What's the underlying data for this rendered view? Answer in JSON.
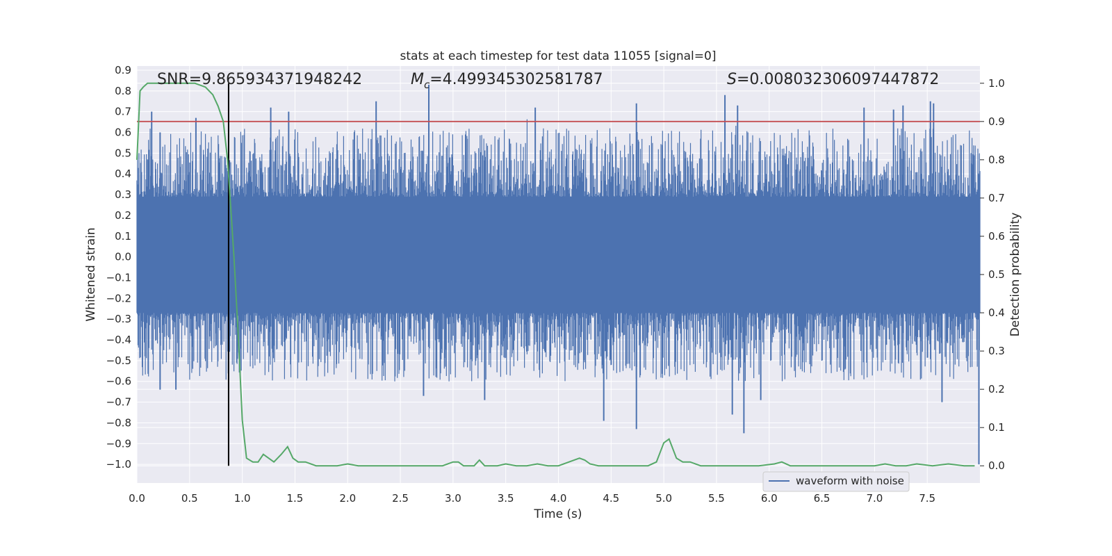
{
  "chart_data": {
    "type": "line",
    "title": "stats at each timestep for test data 11055 [signal=0]",
    "xlabel": "Time (s)",
    "ylabel": "Whitened strain",
    "y2label": "Detection probability",
    "xlim": [
      0.0,
      8.0
    ],
    "ylim": [
      -1.09,
      0.92
    ],
    "y2lim": [
      -0.045,
      1.045
    ],
    "x_ticks": [
      "0.0",
      "0.5",
      "1.0",
      "1.5",
      "2.0",
      "2.5",
      "3.0",
      "3.5",
      "4.0",
      "4.5",
      "5.0",
      "5.5",
      "6.0",
      "6.5",
      "7.0",
      "7.5"
    ],
    "y_ticks": [
      "0.9",
      "0.8",
      "0.7",
      "0.6",
      "0.5",
      "0.4",
      "0.3",
      "0.2",
      "0.1",
      "0.0",
      "−0.1",
      "−0.2",
      "−0.3",
      "−0.4",
      "−0.5",
      "−0.6",
      "−0.7",
      "−0.8",
      "−0.9",
      "−1.0"
    ],
    "y2_ticks": [
      "0.0",
      "0.1",
      "0.2",
      "0.3",
      "0.4",
      "0.5",
      "0.6",
      "0.7",
      "0.8",
      "0.9",
      "1.0"
    ],
    "annotations": {
      "snr": "SNR=9.865934371948242",
      "mc_symbol": "M",
      "mc_sub": "c",
      "mc_value": "=4.499345302581787",
      "s_symbol": "S",
      "s_value": "=0.008032306097447872"
    },
    "threshold": 0.9,
    "marker_time": 0.87,
    "legend": {
      "label": "waveform with noise",
      "position": "lower-right"
    },
    "grid": true,
    "series": [
      {
        "name": "waveform with noise",
        "axis": "left",
        "color": "#4c72b0",
        "description_points": 1600,
        "envelope_hi": 0.29,
        "envelope_lo": -0.27,
        "spikes": [
          {
            "x": 0.14,
            "y": 0.7
          },
          {
            "x": 0.22,
            "y": 0.6
          },
          {
            "x": 0.56,
            "y": 0.67
          },
          {
            "x": 1.27,
            "y": 0.72
          },
          {
            "x": 1.44,
            "y": 0.7
          },
          {
            "x": 2.27,
            "y": 0.75
          },
          {
            "x": 2.77,
            "y": 0.83
          },
          {
            "x": 3.78,
            "y": 0.72
          },
          {
            "x": 4.74,
            "y": 0.74
          },
          {
            "x": 5.58,
            "y": 0.78
          },
          {
            "x": 5.7,
            "y": 0.73
          },
          {
            "x": 6.9,
            "y": 0.72
          },
          {
            "x": 7.18,
            "y": 0.71
          },
          {
            "x": 7.27,
            "y": 0.73
          },
          {
            "x": 7.53,
            "y": 0.75
          },
          {
            "x": 7.56,
            "y": 0.74
          },
          {
            "x": 0.22,
            "y": -0.64
          },
          {
            "x": 0.37,
            "y": -0.64
          },
          {
            "x": 2.72,
            "y": -0.67
          },
          {
            "x": 3.3,
            "y": -0.69
          },
          {
            "x": 4.43,
            "y": -0.79
          },
          {
            "x": 4.74,
            "y": -0.83
          },
          {
            "x": 5.65,
            "y": -0.76
          },
          {
            "x": 5.76,
            "y": -0.85
          },
          {
            "x": 5.92,
            "y": -0.69
          },
          {
            "x": 7.64,
            "y": -0.7
          },
          {
            "x": 7.99,
            "y": -1.0
          },
          {
            "x": 1.0,
            "y": -0.31
          }
        ]
      },
      {
        "name": "detection probability",
        "axis": "right",
        "color": "#55a868",
        "x": [
          0.0,
          0.03,
          0.06,
          0.1,
          0.15,
          0.25,
          0.4,
          0.55,
          0.65,
          0.72,
          0.77,
          0.82,
          0.86,
          0.88,
          0.92,
          0.96,
          1.0,
          1.04,
          1.1,
          1.15,
          1.2,
          1.25,
          1.3,
          1.37,
          1.43,
          1.48,
          1.53,
          1.6,
          1.7,
          1.8,
          1.9,
          2.0,
          2.1,
          2.3,
          2.5,
          2.6,
          2.7,
          2.8,
          2.9,
          3.0,
          3.05,
          3.1,
          3.15,
          3.2,
          3.25,
          3.3,
          3.35,
          3.42,
          3.5,
          3.6,
          3.7,
          3.8,
          3.9,
          4.0,
          4.1,
          4.2,
          4.25,
          4.3,
          4.38,
          4.5,
          4.7,
          4.85,
          4.93,
          5.0,
          5.05,
          5.12,
          5.18,
          5.25,
          5.35,
          5.5,
          5.7,
          5.9,
          6.05,
          6.12,
          6.2,
          6.3,
          6.5,
          6.7,
          7.0,
          7.1,
          7.2,
          7.3,
          7.4,
          7.55,
          7.7,
          7.85,
          7.95
        ],
        "values": [
          0.8,
          0.98,
          0.99,
          1.0,
          1.0,
          1.0,
          1.0,
          1.0,
          0.99,
          0.97,
          0.94,
          0.9,
          0.8,
          0.72,
          0.55,
          0.35,
          0.12,
          0.02,
          0.01,
          0.01,
          0.03,
          0.02,
          0.01,
          0.03,
          0.05,
          0.02,
          0.01,
          0.01,
          0.0,
          0.0,
          0.0,
          0.005,
          0.0,
          0.0,
          0.0,
          0.0,
          0.0,
          0.0,
          0.0,
          0.01,
          0.01,
          0.0,
          0.0,
          0.0,
          0.015,
          0.0,
          0.0,
          0.0,
          0.005,
          0.0,
          0.0,
          0.005,
          0.0,
          0.0,
          0.01,
          0.02,
          0.015,
          0.005,
          0.0,
          0.0,
          0.0,
          0.0,
          0.01,
          0.06,
          0.07,
          0.02,
          0.01,
          0.01,
          0.0,
          0.0,
          0.0,
          0.0,
          0.005,
          0.01,
          0.0,
          0.0,
          0.0,
          0.0,
          0.0,
          0.005,
          0.0,
          0.0,
          0.005,
          0.0,
          0.005,
          0.0,
          0.0
        ]
      }
    ]
  }
}
